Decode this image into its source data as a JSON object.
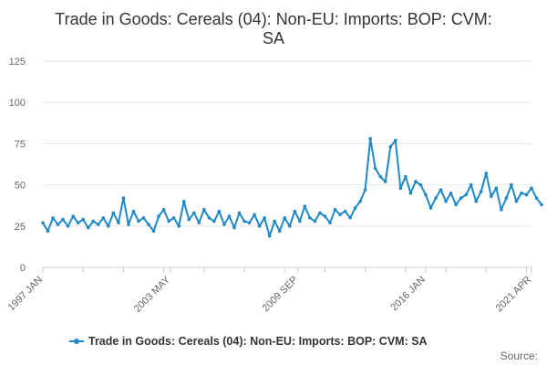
{
  "chart_data": {
    "type": "line",
    "title_lines": [
      "Trade in Goods: Cereals (04): Non-EU: Imports: BOP: CVM:",
      "SA"
    ],
    "xlabel": "",
    "ylabel": "",
    "ylim": [
      0,
      125
    ],
    "yticks": [
      0,
      25,
      50,
      75,
      100,
      125
    ],
    "xticks": [
      {
        "label": "1997 JAN",
        "x": 1997.0
      },
      {
        "label": "2003 MAY",
        "x": 2003.333
      },
      {
        "label": "2009 SEP",
        "x": 2009.667
      },
      {
        "label": "2016 JAN",
        "x": 2016.0
      },
      {
        "label": "2021 APR",
        "x": 2021.25
      }
    ],
    "xlim": [
      1997.0,
      2021.25
    ],
    "grid": true,
    "legend_position": "bottom",
    "series": [
      {
        "name": "Trade in Goods: Cereals (04): Non-EU: Imports: BOP: CVM: SA",
        "color": "#1f88c8",
        "points": [
          [
            1997.0,
            27
          ],
          [
            1997.25,
            22
          ],
          [
            1997.5,
            30
          ],
          [
            1997.75,
            26
          ],
          [
            1998.0,
            29
          ],
          [
            1998.25,
            25
          ],
          [
            1998.5,
            31
          ],
          [
            1998.75,
            27
          ],
          [
            1999.0,
            29
          ],
          [
            1999.25,
            24
          ],
          [
            1999.5,
            28
          ],
          [
            1999.75,
            26
          ],
          [
            2000.0,
            30
          ],
          [
            2000.25,
            25
          ],
          [
            2000.5,
            33
          ],
          [
            2000.75,
            27
          ],
          [
            2001.0,
            42
          ],
          [
            2001.25,
            26
          ],
          [
            2001.5,
            34
          ],
          [
            2001.75,
            28
          ],
          [
            2002.0,
            30
          ],
          [
            2002.25,
            26
          ],
          [
            2002.5,
            22
          ],
          [
            2002.75,
            31
          ],
          [
            2003.0,
            35
          ],
          [
            2003.25,
            28
          ],
          [
            2003.5,
            30
          ],
          [
            2003.75,
            25
          ],
          [
            2004.0,
            40
          ],
          [
            2004.25,
            29
          ],
          [
            2004.5,
            33
          ],
          [
            2004.75,
            27
          ],
          [
            2005.0,
            35
          ],
          [
            2005.25,
            30
          ],
          [
            2005.5,
            28
          ],
          [
            2005.75,
            34
          ],
          [
            2006.0,
            26
          ],
          [
            2006.25,
            31
          ],
          [
            2006.5,
            24
          ],
          [
            2006.75,
            33
          ],
          [
            2007.0,
            28
          ],
          [
            2007.25,
            27
          ],
          [
            2007.5,
            32
          ],
          [
            2007.75,
            25
          ],
          [
            2008.0,
            30
          ],
          [
            2008.25,
            19
          ],
          [
            2008.5,
            28
          ],
          [
            2008.75,
            22
          ],
          [
            2009.0,
            30
          ],
          [
            2009.25,
            25
          ],
          [
            2009.5,
            34
          ],
          [
            2009.75,
            28
          ],
          [
            2010.0,
            37
          ],
          [
            2010.25,
            30
          ],
          [
            2010.5,
            28
          ],
          [
            2010.75,
            33
          ],
          [
            2011.0,
            31
          ],
          [
            2011.25,
            27
          ],
          [
            2011.5,
            35
          ],
          [
            2011.75,
            32
          ],
          [
            2012.0,
            34
          ],
          [
            2012.25,
            30
          ],
          [
            2012.5,
            36
          ],
          [
            2012.75,
            40
          ],
          [
            2013.0,
            47
          ],
          [
            2013.25,
            78
          ],
          [
            2013.5,
            60
          ],
          [
            2013.75,
            55
          ],
          [
            2014.0,
            52
          ],
          [
            2014.25,
            73
          ],
          [
            2014.5,
            77
          ],
          [
            2014.75,
            48
          ],
          [
            2015.0,
            55
          ],
          [
            2015.25,
            45
          ],
          [
            2015.5,
            52
          ],
          [
            2015.75,
            50
          ],
          [
            2016.0,
            44
          ],
          [
            2016.25,
            36
          ],
          [
            2016.5,
            42
          ],
          [
            2016.75,
            47
          ],
          [
            2017.0,
            40
          ],
          [
            2017.25,
            45
          ],
          [
            2017.5,
            38
          ],
          [
            2017.75,
            42
          ],
          [
            2018.0,
            44
          ],
          [
            2018.25,
            50
          ],
          [
            2018.5,
            40
          ],
          [
            2018.75,
            46
          ],
          [
            2019.0,
            57
          ],
          [
            2019.25,
            43
          ],
          [
            2019.5,
            48
          ],
          [
            2019.75,
            35
          ],
          [
            2020.0,
            42
          ],
          [
            2020.25,
            50
          ],
          [
            2020.5,
            40
          ],
          [
            2020.75,
            45
          ],
          [
            2021.0,
            44
          ],
          [
            2021.25,
            48
          ],
          [
            2021.5,
            42
          ],
          [
            2021.75,
            38
          ]
        ]
      }
    ],
    "source_label": "Source:"
  }
}
